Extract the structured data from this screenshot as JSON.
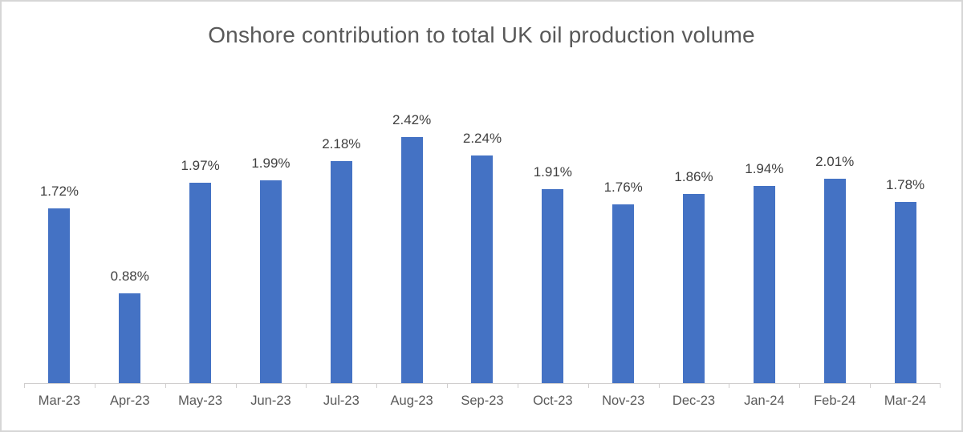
{
  "chart_data": {
    "type": "bar",
    "title": "Onshore contribution to total UK oil production volume",
    "categories": [
      "Mar-23",
      "Apr-23",
      "May-23",
      "Jun-23",
      "Jul-23",
      "Aug-23",
      "Sep-23",
      "Oct-23",
      "Nov-23",
      "Dec-23",
      "Jan-24",
      "Feb-24",
      "Mar-24"
    ],
    "values": [
      1.72,
      0.88,
      1.97,
      1.99,
      2.18,
      2.42,
      2.24,
      1.91,
      1.76,
      1.86,
      1.94,
      2.01,
      1.78
    ],
    "data_labels": [
      "1.72%",
      "0.88%",
      "1.97%",
      "1.99%",
      "2.18%",
      "2.42%",
      "2.24%",
      "1.91%",
      "1.76%",
      "1.86%",
      "1.94%",
      "2.01%",
      "1.78%"
    ],
    "xlabel": "",
    "ylabel": "",
    "ylim": [
      0,
      2.6
    ],
    "grid": false,
    "legend": "none",
    "colors": {
      "bar": "#4472C4",
      "title": "#595959",
      "data_label": "#404040",
      "axis_label": "#595959",
      "axis_line": "#D0CECE",
      "frame_border": "#D6D6D6"
    }
  }
}
